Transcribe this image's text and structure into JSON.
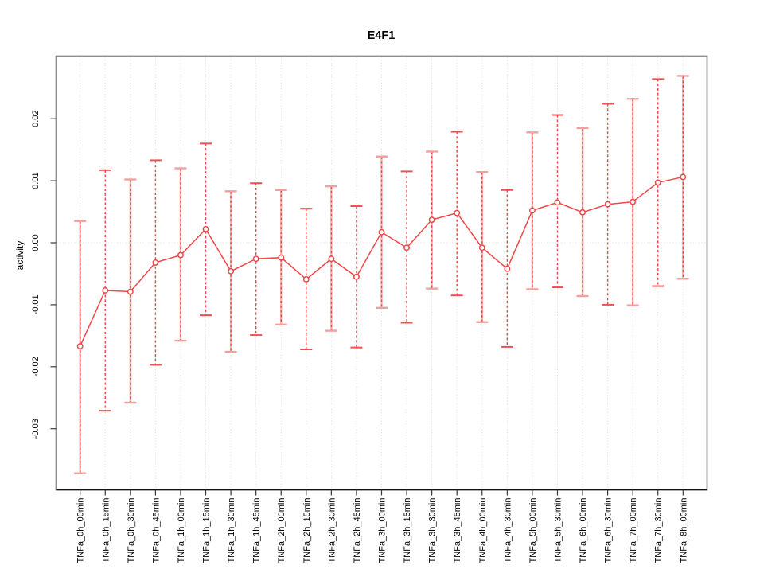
{
  "figure": {
    "title": "E4F1"
  },
  "chart_data": {
    "type": "line",
    "title": "E4F1",
    "xlabel": "",
    "ylabel": "activity",
    "categories": [
      "TNFa_0h_00min",
      "TNFa_0h_15min",
      "TNFa_0h_30min",
      "TNFa_0h_45min",
      "TNFa_1h_00min",
      "TNFa_1h_15min",
      "TNFa_1h_30min",
      "TNFa_1h_45min",
      "TNFa_2h_00min",
      "TNFa_2h_15min",
      "TNFa_2h_30min",
      "TNFa_2h_45min",
      "TNFa_3h_00min",
      "TNFa_3h_15min",
      "TNFa_3h_30min",
      "TNFa_3h_45min",
      "TNFa_4h_00min",
      "TNFa_4h_30min",
      "TNFa_5h_00min",
      "TNFa_5h_30min",
      "TNFa_6h_00min",
      "TNFa_6h_30min",
      "TNFa_7h_00min",
      "TNFa_7h_30min",
      "TNFa_8h_00min"
    ],
    "series": [
      {
        "name": "E4F1 activity",
        "values": [
          -0.0167,
          -0.0077,
          -0.0079,
          -0.0032,
          -0.002,
          0.0022,
          -0.0046,
          -0.0026,
          -0.0024,
          -0.0059,
          -0.0026,
          -0.0055,
          0.0017,
          -0.0008,
          0.0037,
          0.0048,
          -0.0008,
          -0.0042,
          0.0052,
          0.0065,
          0.0049,
          0.0062,
          0.0066,
          0.0097,
          0.0106
        ]
      }
    ],
    "error_bars": {
      "upper": [
        0.0035,
        0.0117,
        0.0102,
        0.0133,
        0.012,
        0.016,
        0.0083,
        0.0096,
        0.0085,
        0.0055,
        0.0091,
        0.0059,
        0.0139,
        0.0115,
        0.0147,
        0.0179,
        0.0114,
        0.0085,
        0.0178,
        0.0206,
        0.0185,
        0.0224,
        0.0232,
        0.0264,
        0.0269
      ],
      "lower": [
        -0.0372,
        -0.0271,
        -0.0258,
        -0.0197,
        -0.0158,
        -0.0117,
        -0.0176,
        -0.0149,
        -0.0132,
        -0.0172,
        -0.0142,
        -0.0169,
        -0.0105,
        -0.0129,
        -0.0074,
        -0.0085,
        -0.0128,
        -0.0168,
        -0.0075,
        -0.0072,
        -0.0086,
        -0.01,
        -0.0101,
        -0.007,
        -0.0058
      ]
    },
    "yticks": [
      "0.02",
      "0.01",
      "0.00",
      "-0.01",
      "-0.02",
      "-0.03"
    ],
    "ylim": [
      -0.04,
      0.03
    ],
    "grid": {
      "vertical_dotted_per_category": true,
      "horizontal_dotted_at_zero": true
    },
    "legend": "none",
    "marker": "open-circle",
    "colors": {
      "series": "#ef4646",
      "error_bar_base": "#f7b2b2",
      "cap_light": "#f59e9e",
      "cap_strong": "#f14f4f",
      "grid": "#dcdcdc",
      "box_border": "#8f8f8f",
      "axis_line": "#111111",
      "text": "#000000",
      "background": "#ffffff"
    }
  }
}
